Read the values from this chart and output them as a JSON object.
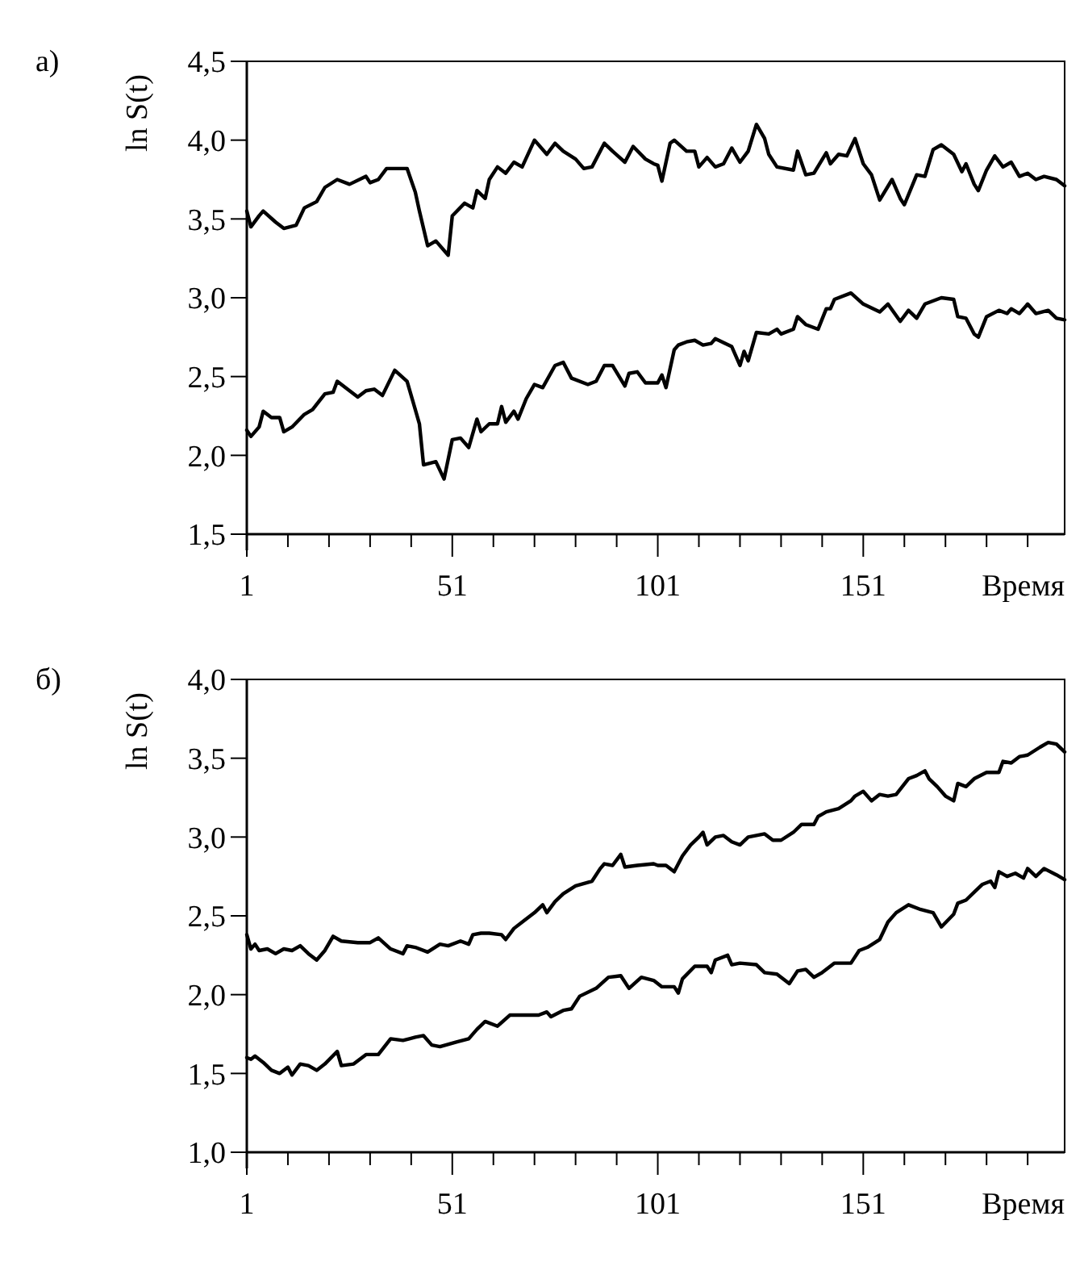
{
  "chart_data": [
    {
      "type": "line",
      "title": "а)",
      "ylabel": "ln S(t)",
      "xlabel": "Время",
      "xlim": [
        1,
        200
      ],
      "ylim": [
        1.5,
        4.5
      ],
      "xticks": [
        1,
        {
          "value": 11,
          "label": null
        },
        {
          "value": 21,
          "label": null
        },
        {
          "value": 31,
          "label": null
        },
        {
          "value": 41,
          "label": null
        },
        51,
        {
          "value": 61,
          "label": null
        },
        {
          "value": 71,
          "label": null
        },
        {
          "value": 81,
          "label": null
        },
        {
          "value": 91,
          "label": null
        },
        101,
        {
          "value": 111,
          "label": null
        },
        {
          "value": 121,
          "label": null
        },
        {
          "value": 131,
          "label": null
        },
        {
          "value": 141,
          "label": null
        },
        151,
        {
          "value": 161,
          "label": null
        },
        {
          "value": 171,
          "label": null
        },
        {
          "value": 181,
          "label": null
        },
        {
          "value": 191,
          "label": null
        }
      ],
      "yticks": [
        {
          "value": 1.5,
          "label": "1,5"
        },
        {
          "value": 2.0,
          "label": "2,0"
        },
        {
          "value": 2.5,
          "label": "2,5"
        },
        {
          "value": 3.0,
          "label": "3,0"
        },
        {
          "value": 3.5,
          "label": "3,5"
        },
        {
          "value": 4.0,
          "label": "4,0"
        },
        {
          "value": 4.5,
          "label": "4,5"
        }
      ],
      "grid": false,
      "line_style": "solid",
      "marker": "none",
      "series": [
        {
          "color": "#000000",
          "x": [
            1,
            2,
            4,
            5,
            8,
            10,
            13,
            15,
            18,
            20,
            23,
            26,
            30,
            31,
            33,
            35,
            40,
            42,
            43,
            45,
            47,
            50,
            51,
            54,
            56,
            57,
            59,
            60,
            62,
            64,
            66,
            68,
            71,
            74,
            76,
            78,
            81,
            83,
            85,
            88,
            90,
            93,
            95,
            98,
            100,
            101,
            102,
            104,
            105,
            108,
            110,
            111,
            113,
            115,
            117,
            119,
            121,
            123,
            125,
            127,
            128,
            130,
            134,
            135,
            137,
            139,
            142,
            143,
            145,
            147,
            149,
            151,
            153,
            155,
            158,
            160,
            161,
            164,
            166,
            168,
            170,
            173,
            175,
            176,
            178,
            179,
            181,
            183,
            185,
            187,
            189,
            191,
            193,
            195,
            198,
            200
          ],
          "values": [
            3.55,
            3.45,
            3.52,
            3.55,
            3.48,
            3.44,
            3.46,
            3.57,
            3.61,
            3.7,
            3.75,
            3.72,
            3.77,
            3.73,
            3.75,
            3.82,
            3.82,
            3.67,
            3.55,
            3.33,
            3.36,
            3.27,
            3.52,
            3.6,
            3.57,
            3.68,
            3.63,
            3.75,
            3.83,
            3.79,
            3.86,
            3.83,
            4.0,
            3.91,
            3.98,
            3.93,
            3.88,
            3.82,
            3.83,
            3.98,
            3.93,
            3.86,
            3.96,
            3.88,
            3.85,
            3.84,
            3.74,
            3.98,
            4.0,
            3.93,
            3.93,
            3.83,
            3.89,
            3.83,
            3.85,
            3.95,
            3.86,
            3.93,
            4.1,
            4.01,
            3.91,
            3.83,
            3.81,
            3.93,
            3.78,
            3.79,
            3.92,
            3.85,
            3.91,
            3.9,
            4.01,
            3.85,
            3.78,
            3.62,
            3.75,
            3.63,
            3.59,
            3.78,
            3.77,
            3.94,
            3.97,
            3.91,
            3.8,
            3.85,
            3.72,
            3.68,
            3.81,
            3.9,
            3.83,
            3.86,
            3.77,
            3.79,
            3.75,
            3.77,
            3.75,
            3.71
          ]
        },
        {
          "color": "#000000",
          "x": [
            1,
            2,
            4,
            5,
            7,
            9,
            10,
            12,
            15,
            17,
            20,
            22,
            23,
            26,
            28,
            30,
            32,
            34,
            37,
            40,
            42,
            43,
            44,
            47,
            49,
            51,
            53,
            55,
            57,
            58,
            60,
            62,
            63,
            64,
            66,
            67,
            69,
            71,
            73,
            76,
            78,
            80,
            84,
            86,
            88,
            90,
            93,
            94,
            96,
            98,
            100,
            101,
            102,
            103,
            105,
            106,
            108,
            110,
            112,
            114,
            115,
            119,
            121,
            122,
            123,
            125,
            128,
            130,
            131,
            134,
            135,
            137,
            140,
            142,
            143,
            144,
            148,
            151,
            155,
            157,
            160,
            162,
            164,
            166,
            170,
            173,
            174,
            176,
            178,
            179,
            181,
            184,
            186,
            187,
            189,
            191,
            193,
            196,
            198,
            200
          ],
          "values": [
            2.16,
            2.12,
            2.18,
            2.28,
            2.24,
            2.24,
            2.15,
            2.18,
            2.26,
            2.29,
            2.39,
            2.4,
            2.47,
            2.41,
            2.37,
            2.41,
            2.42,
            2.38,
            2.54,
            2.47,
            2.29,
            2.2,
            1.94,
            1.96,
            1.85,
            2.1,
            2.11,
            2.05,
            2.23,
            2.15,
            2.2,
            2.2,
            2.31,
            2.21,
            2.28,
            2.23,
            2.36,
            2.45,
            2.43,
            2.57,
            2.59,
            2.49,
            2.45,
            2.47,
            2.57,
            2.57,
            2.44,
            2.52,
            2.53,
            2.46,
            2.46,
            2.46,
            2.51,
            2.43,
            2.67,
            2.7,
            2.72,
            2.73,
            2.7,
            2.71,
            2.74,
            2.69,
            2.57,
            2.66,
            2.6,
            2.78,
            2.77,
            2.8,
            2.77,
            2.8,
            2.88,
            2.83,
            2.8,
            2.93,
            2.93,
            2.99,
            3.03,
            2.96,
            2.91,
            2.96,
            2.85,
            2.92,
            2.87,
            2.96,
            3.0,
            2.99,
            2.88,
            2.87,
            2.77,
            2.75,
            2.88,
            2.92,
            2.9,
            2.93,
            2.9,
            2.96,
            2.9,
            2.92,
            2.87,
            2.86
          ]
        }
      ]
    },
    {
      "type": "line",
      "title": "б)",
      "ylabel": "ln S(t)",
      "xlabel": "Время",
      "xlim": [
        1,
        200
      ],
      "ylim": [
        1.0,
        4.0
      ],
      "xticks": [
        1,
        {
          "value": 11,
          "label": null
        },
        {
          "value": 21,
          "label": null
        },
        {
          "value": 31,
          "label": null
        },
        {
          "value": 41,
          "label": null
        },
        51,
        {
          "value": 61,
          "label": null
        },
        {
          "value": 71,
          "label": null
        },
        {
          "value": 81,
          "label": null
        },
        {
          "value": 91,
          "label": null
        },
        101,
        {
          "value": 111,
          "label": null
        },
        {
          "value": 121,
          "label": null
        },
        {
          "value": 131,
          "label": null
        },
        {
          "value": 141,
          "label": null
        },
        151,
        {
          "value": 161,
          "label": null
        },
        {
          "value": 171,
          "label": null
        },
        {
          "value": 181,
          "label": null
        },
        {
          "value": 191,
          "label": null
        }
      ],
      "yticks": [
        {
          "value": 1.0,
          "label": "1,0"
        },
        {
          "value": 1.5,
          "label": "1,5"
        },
        {
          "value": 2.0,
          "label": "2,0"
        },
        {
          "value": 2.5,
          "label": "2,5"
        },
        {
          "value": 3.0,
          "label": "3,0"
        },
        {
          "value": 3.5,
          "label": "3,5"
        },
        {
          "value": 4.0,
          "label": "4,0"
        }
      ],
      "grid": false,
      "line_style": "solid",
      "marker": "none",
      "series": [
        {
          "color": "#000000",
          "x": [
            1,
            2,
            3,
            4,
            6,
            8,
            10,
            12,
            14,
            16,
            18,
            20,
            22,
            24,
            28,
            31,
            33,
            36,
            39,
            40,
            42,
            45,
            48,
            50,
            53,
            55,
            56,
            58,
            60,
            63,
            64,
            66,
            68,
            71,
            73,
            74,
            76,
            78,
            81,
            85,
            87,
            88,
            90,
            92,
            93,
            96,
            100,
            101,
            103,
            105,
            107,
            109,
            111,
            112,
            113,
            115,
            117,
            119,
            121,
            123,
            125,
            127,
            129,
            131,
            134,
            136,
            139,
            140,
            142,
            145,
            148,
            149,
            151,
            153,
            155,
            157,
            159,
            162,
            164,
            166,
            167,
            169,
            171,
            173,
            174,
            176,
            178,
            181,
            184,
            185,
            187,
            189,
            191,
            194,
            196,
            198,
            200
          ],
          "values": [
            2.38,
            2.29,
            2.32,
            2.28,
            2.29,
            2.26,
            2.29,
            2.28,
            2.31,
            2.26,
            2.22,
            2.28,
            2.37,
            2.34,
            2.33,
            2.33,
            2.36,
            2.29,
            2.26,
            2.31,
            2.3,
            2.27,
            2.32,
            2.31,
            2.34,
            2.32,
            2.38,
            2.39,
            2.39,
            2.38,
            2.35,
            2.42,
            2.46,
            2.52,
            2.57,
            2.52,
            2.59,
            2.64,
            2.69,
            2.72,
            2.8,
            2.83,
            2.82,
            2.89,
            2.81,
            2.82,
            2.83,
            2.82,
            2.82,
            2.78,
            2.88,
            2.95,
            3.0,
            3.03,
            2.95,
            3.0,
            3.01,
            2.97,
            2.95,
            3.0,
            3.01,
            3.02,
            2.98,
            2.98,
            3.03,
            3.08,
            3.08,
            3.13,
            3.16,
            3.18,
            3.23,
            3.26,
            3.29,
            3.23,
            3.27,
            3.26,
            3.27,
            3.37,
            3.39,
            3.42,
            3.37,
            3.32,
            3.26,
            3.23,
            3.34,
            3.32,
            3.37,
            3.41,
            3.41,
            3.48,
            3.47,
            3.51,
            3.52,
            3.57,
            3.6,
            3.59,
            3.54
          ]
        },
        {
          "color": "#000000",
          "x": [
            1,
            2,
            3,
            5,
            7,
            9,
            11,
            12,
            14,
            16,
            18,
            20,
            23,
            24,
            27,
            30,
            33,
            36,
            39,
            42,
            44,
            46,
            48,
            52,
            55,
            57,
            59,
            62,
            65,
            69,
            72,
            74,
            75,
            78,
            80,
            82,
            86,
            89,
            92,
            94,
            97,
            100,
            102,
            105,
            106,
            107,
            110,
            113,
            114,
            115,
            118,
            119,
            121,
            125,
            127,
            130,
            133,
            135,
            137,
            139,
            141,
            144,
            148,
            150,
            152,
            155,
            157,
            159,
            162,
            165,
            168,
            170,
            173,
            174,
            176,
            178,
            180,
            182,
            183,
            184,
            186,
            188,
            190,
            191,
            193,
            195,
            198,
            200
          ],
          "values": [
            1.6,
            1.59,
            1.61,
            1.57,
            1.52,
            1.5,
            1.54,
            1.49,
            1.56,
            1.55,
            1.52,
            1.56,
            1.64,
            1.55,
            1.56,
            1.62,
            1.62,
            1.72,
            1.71,
            1.73,
            1.74,
            1.68,
            1.67,
            1.7,
            1.72,
            1.78,
            1.83,
            1.8,
            1.87,
            1.87,
            1.87,
            1.89,
            1.86,
            1.9,
            1.91,
            1.99,
            2.04,
            2.11,
            2.12,
            2.04,
            2.11,
            2.09,
            2.05,
            2.05,
            2.01,
            2.1,
            2.18,
            2.18,
            2.14,
            2.22,
            2.25,
            2.19,
            2.2,
            2.19,
            2.14,
            2.13,
            2.07,
            2.15,
            2.16,
            2.11,
            2.14,
            2.2,
            2.2,
            2.28,
            2.3,
            2.35,
            2.46,
            2.52,
            2.57,
            2.54,
            2.52,
            2.43,
            2.51,
            2.58,
            2.6,
            2.65,
            2.7,
            2.72,
            2.68,
            2.78,
            2.75,
            2.77,
            2.74,
            2.8,
            2.75,
            2.8,
            2.76,
            2.73
          ]
        }
      ]
    }
  ]
}
